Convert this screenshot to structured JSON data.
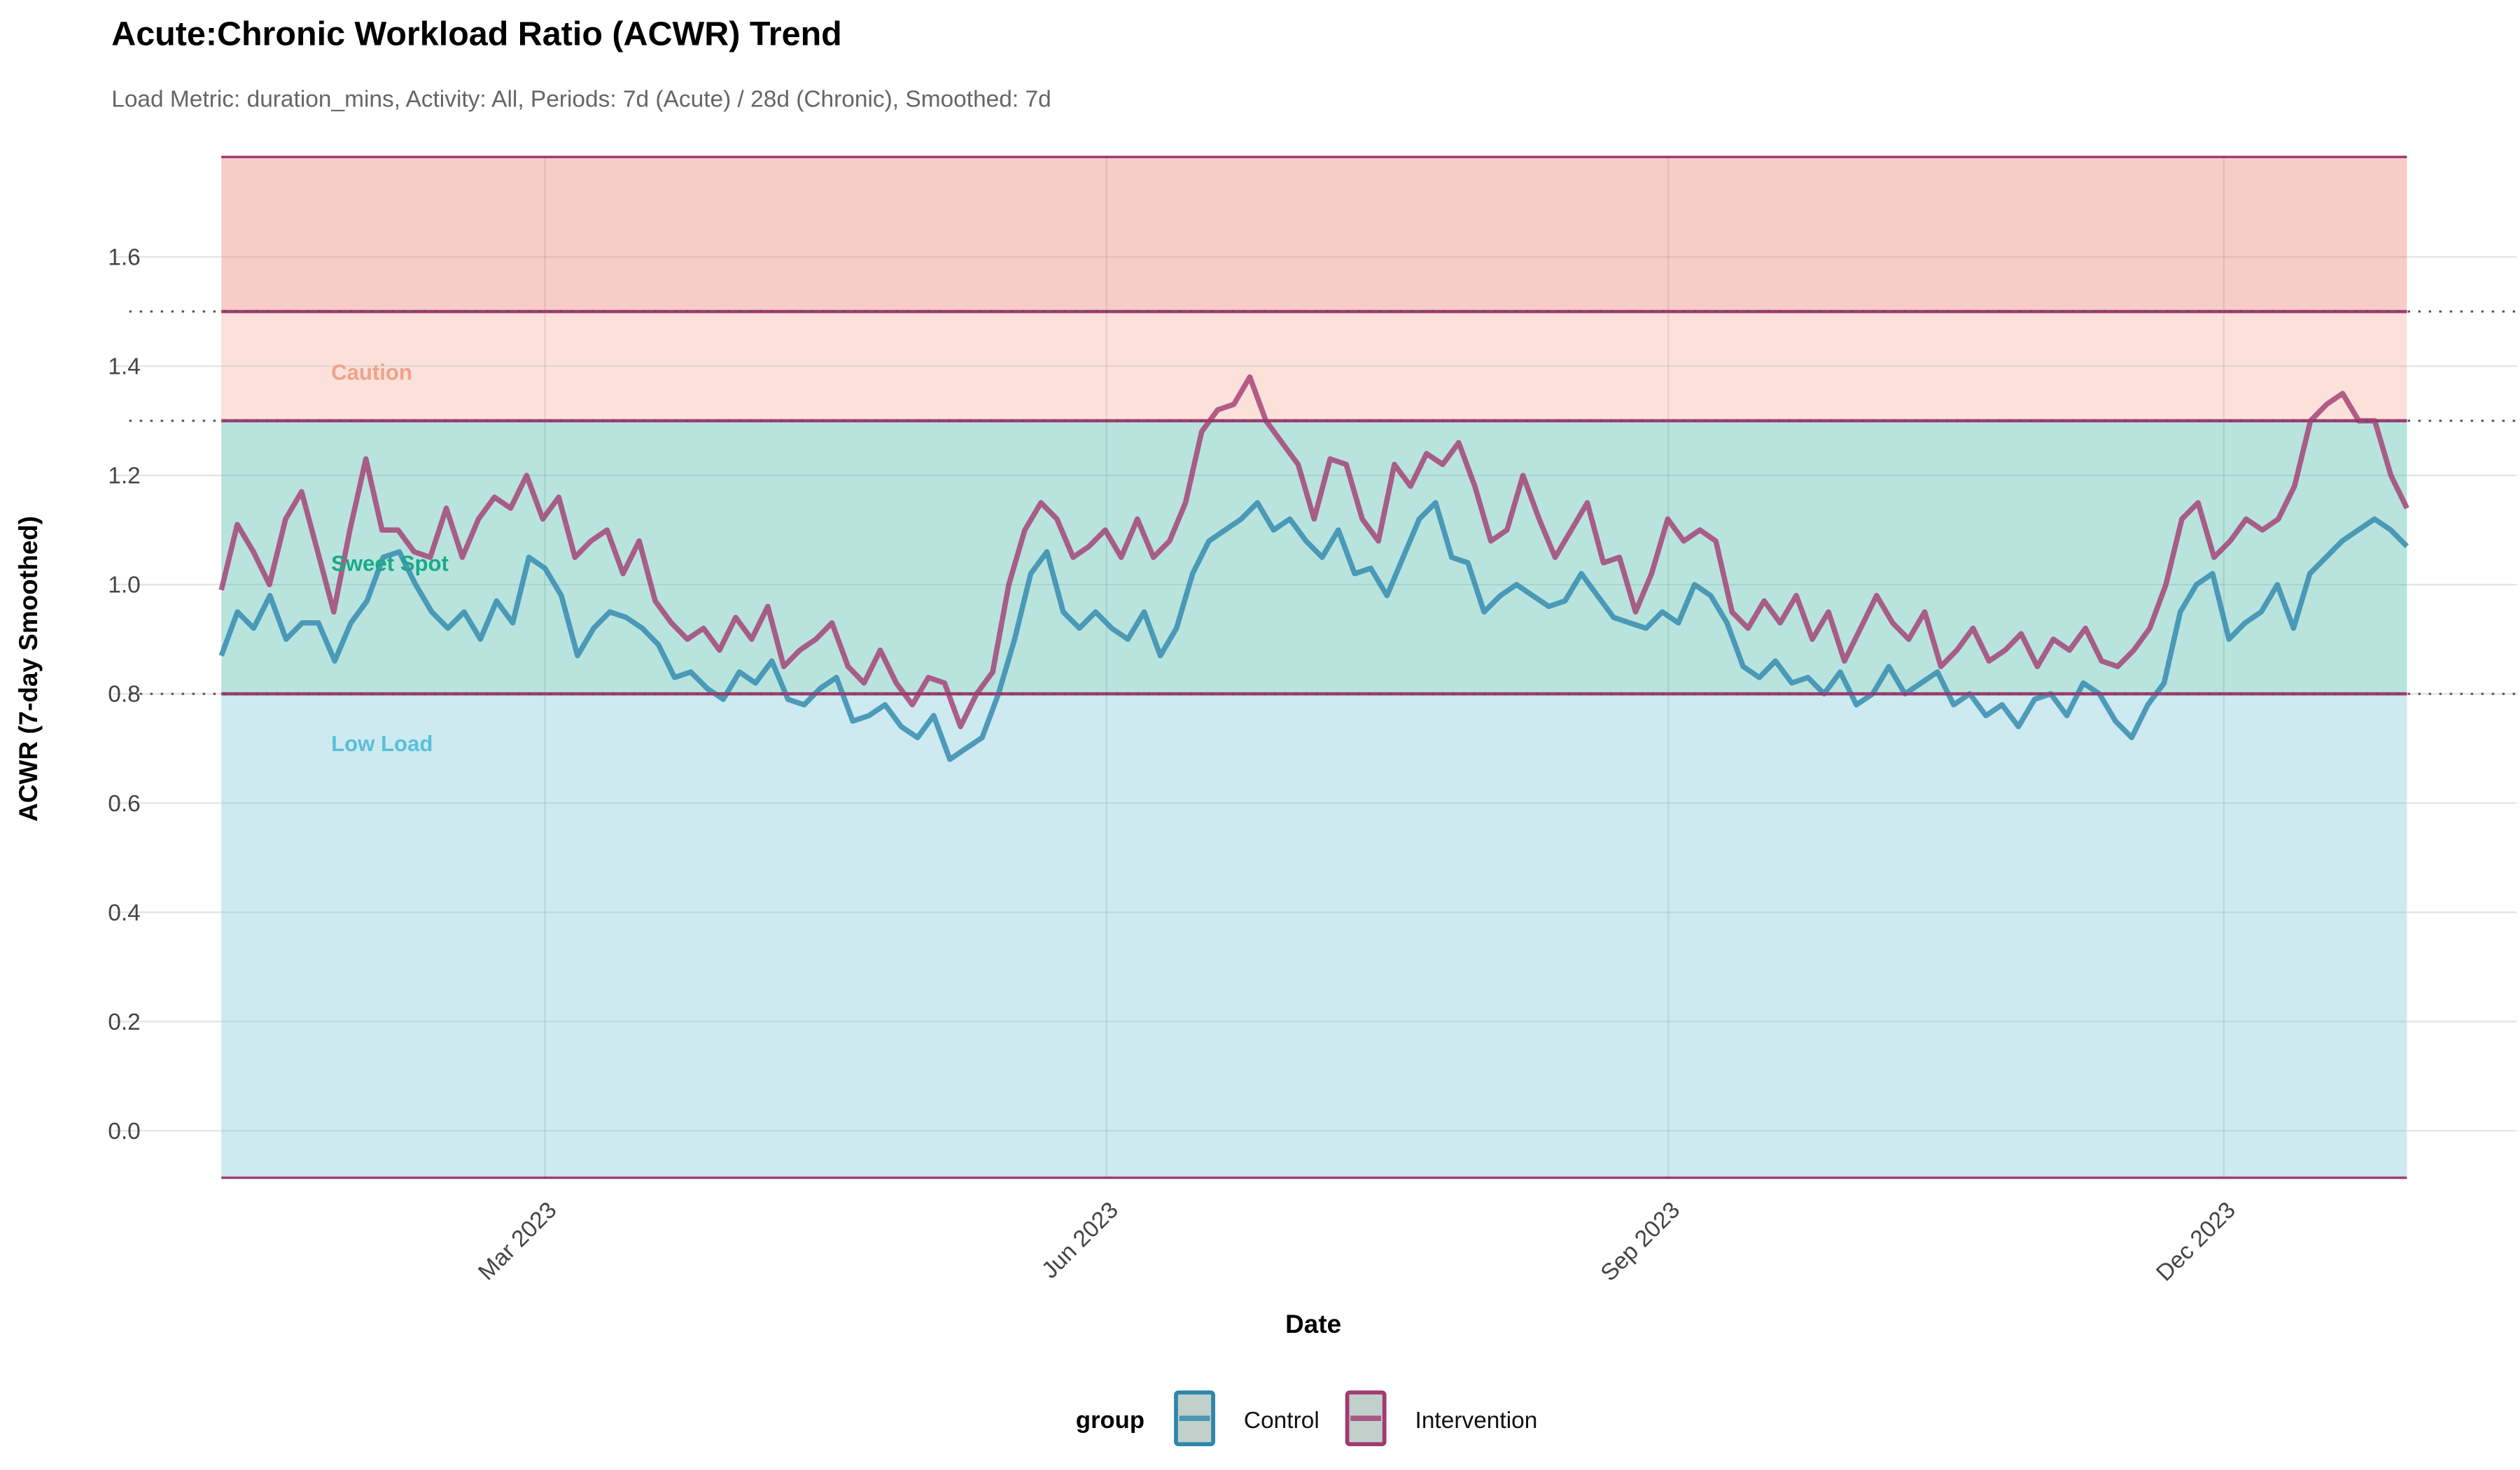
{
  "chart_data": {
    "type": "line",
    "title": "Acute:Chronic Workload Ratio (ACWR) Trend",
    "subtitle": "Load Metric: duration_mins, Activity: All, Periods: 7d (Acute) / 28d (Chronic), Smoothed: 7d",
    "xlabel": "Date",
    "ylabel": "ACWR (7-day Smoothed)",
    "x_range": [
      "2023-01-07",
      "2023-12-31"
    ],
    "xticks": [
      {
        "label": "Mar 2023",
        "date": "2023-03-01"
      },
      {
        "label": "Jun 2023",
        "date": "2023-06-01"
      },
      {
        "label": "Sep 2023",
        "date": "2023-09-01"
      },
      {
        "label": "Dec 2023",
        "date": "2023-12-01"
      }
    ],
    "yticks": [
      "0.0",
      "0.2",
      "0.4",
      "0.6",
      "0.8",
      "1.0",
      "1.2",
      "1.4",
      "1.6"
    ],
    "ylim": [
      -0.086,
      1.783
    ],
    "grid": true,
    "zones": [
      {
        "label": "Low Load",
        "from": -0.086,
        "to": 0.8,
        "fill": "#cdeaf1",
        "label_color": "#5bbfd8",
        "label_y": 0.71
      },
      {
        "label": "Sweet Spot",
        "from": 0.8,
        "to": 1.3,
        "fill": "#b9e4de",
        "label_color": "#1aa98a",
        "label_y": 1.04
      },
      {
        "label": "Caution",
        "from": 1.3,
        "to": 1.5,
        "fill": "#fbe1da",
        "label_color": "#f0a28b",
        "label_y": 1.39
      },
      {
        "label": "",
        "from": 1.5,
        "to": 1.783,
        "fill": "#f7cdc8"
      }
    ],
    "thresholds": [
      0.8,
      1.3,
      1.5
    ],
    "legend": {
      "title": "group",
      "placement": "bottom"
    },
    "series": [
      {
        "name": "Control",
        "color": "#2e86ab",
        "values": [
          0.87,
          0.95,
          0.92,
          0.98,
          0.9,
          0.93,
          0.93,
          0.86,
          0.93,
          0.97,
          1.05,
          1.06,
          1.0,
          0.95,
          0.92,
          0.95,
          0.9,
          0.97,
          0.93,
          1.05,
          1.03,
          0.98,
          0.87,
          0.92,
          0.95,
          0.94,
          0.92,
          0.89,
          0.83,
          0.84,
          0.81,
          0.79,
          0.84,
          0.82,
          0.86,
          0.79,
          0.78,
          0.81,
          0.83,
          0.75,
          0.76,
          0.78,
          0.74,
          0.72,
          0.76,
          0.68,
          0.7,
          0.72,
          0.8,
          0.9,
          1.02,
          1.06,
          0.95,
          0.92,
          0.95,
          0.92,
          0.9,
          0.95,
          0.87,
          0.92,
          1.02,
          1.08,
          1.1,
          1.12,
          1.15,
          1.1,
          1.12,
          1.08,
          1.05,
          1.1,
          1.02,
          1.03,
          0.98,
          1.05,
          1.12,
          1.15,
          1.05,
          1.04,
          0.95,
          0.98,
          1.0,
          0.98,
          0.96,
          0.97,
          1.02,
          0.98,
          0.94,
          0.93,
          0.92,
          0.95,
          0.93,
          1.0,
          0.98,
          0.93,
          0.85,
          0.83,
          0.86,
          0.82,
          0.83,
          0.8,
          0.84,
          0.78,
          0.8,
          0.85,
          0.8,
          0.82,
          0.84,
          0.78,
          0.8,
          0.76,
          0.78,
          0.74,
          0.79,
          0.8,
          0.76,
          0.82,
          0.8,
          0.75,
          0.72,
          0.78,
          0.82,
          0.95,
          1.0,
          1.02,
          0.9,
          0.93,
          0.95,
          1.0,
          0.92,
          1.02,
          1.05,
          1.08,
          1.1,
          1.12,
          1.1,
          1.07
        ]
      },
      {
        "name": "Intervention",
        "color": "#a23b72",
        "values": [
          0.99,
          1.11,
          1.06,
          1.0,
          1.12,
          1.17,
          1.06,
          0.95,
          1.1,
          1.23,
          1.1,
          1.1,
          1.06,
          1.05,
          1.14,
          1.05,
          1.12,
          1.16,
          1.14,
          1.2,
          1.12,
          1.16,
          1.05,
          1.08,
          1.1,
          1.02,
          1.08,
          0.97,
          0.93,
          0.9,
          0.92,
          0.88,
          0.94,
          0.9,
          0.96,
          0.85,
          0.88,
          0.9,
          0.93,
          0.85,
          0.82,
          0.88,
          0.82,
          0.78,
          0.83,
          0.82,
          0.74,
          0.8,
          0.84,
          1.0,
          1.1,
          1.15,
          1.12,
          1.05,
          1.07,
          1.1,
          1.05,
          1.12,
          1.05,
          1.08,
          1.15,
          1.28,
          1.32,
          1.33,
          1.38,
          1.3,
          1.26,
          1.22,
          1.12,
          1.23,
          1.22,
          1.12,
          1.08,
          1.22,
          1.18,
          1.24,
          1.22,
          1.26,
          1.18,
          1.08,
          1.1,
          1.2,
          1.12,
          1.05,
          1.1,
          1.15,
          1.04,
          1.05,
          0.95,
          1.02,
          1.12,
          1.08,
          1.1,
          1.08,
          0.95,
          0.92,
          0.97,
          0.93,
          0.98,
          0.9,
          0.95,
          0.86,
          0.92,
          0.98,
          0.93,
          0.9,
          0.95,
          0.85,
          0.88,
          0.92,
          0.86,
          0.88,
          0.91,
          0.85,
          0.9,
          0.88,
          0.92,
          0.86,
          0.85,
          0.88,
          0.92,
          1.0,
          1.12,
          1.15,
          1.05,
          1.08,
          1.12,
          1.1,
          1.12,
          1.18,
          1.3,
          1.33,
          1.35,
          1.3,
          1.3,
          1.2,
          1.14
        ]
      }
    ]
  }
}
